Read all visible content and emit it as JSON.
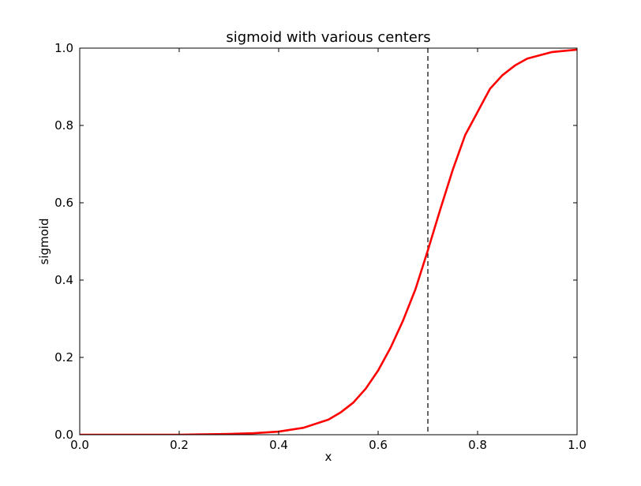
{
  "chart_data": {
    "type": "line",
    "title": "sigmoid with various centers",
    "xlabel": "x",
    "ylabel": "sigmoid",
    "xlim": [
      0.0,
      1.0
    ],
    "ylim": [
      0.0,
      1.0
    ],
    "xticks": [
      0.0,
      0.2,
      0.4,
      0.6,
      0.8,
      1.0
    ],
    "yticks": [
      0.0,
      0.2,
      0.4,
      0.6,
      0.8,
      1.0
    ],
    "xtick_labels": [
      "0.0",
      "0.2",
      "0.4",
      "0.6",
      "0.8",
      "1.0"
    ],
    "ytick_labels": [
      "0.0",
      "0.2",
      "0.4",
      "0.6",
      "0.8",
      "1.0"
    ],
    "grid": false,
    "legend": "none",
    "series": [
      {
        "color": "#ff0000",
        "style": "solid",
        "x": [
          0.0,
          0.05,
          0.1,
          0.15,
          0.2,
          0.25,
          0.3,
          0.35,
          0.4,
          0.45,
          0.5,
          0.525,
          0.55,
          0.575,
          0.6,
          0.625,
          0.65,
          0.675,
          0.7,
          0.725,
          0.75,
          0.775,
          0.8,
          0.825,
          0.85,
          0.875,
          0.9,
          0.95,
          1.0
        ],
        "y": [
          0.0,
          0.0,
          0.0,
          0.0,
          0.0,
          0.001,
          0.002,
          0.004,
          0.008,
          0.018,
          0.039,
          0.058,
          0.083,
          0.119,
          0.166,
          0.225,
          0.295,
          0.376,
          0.477,
          0.583,
          0.685,
          0.775,
          0.835,
          0.895,
          0.93,
          0.955,
          0.973,
          0.99,
          0.996
        ]
      }
    ],
    "reference_lines": [
      {
        "orientation": "vertical",
        "x": 0.7,
        "style": "dashed",
        "color": "#000000"
      }
    ]
  }
}
